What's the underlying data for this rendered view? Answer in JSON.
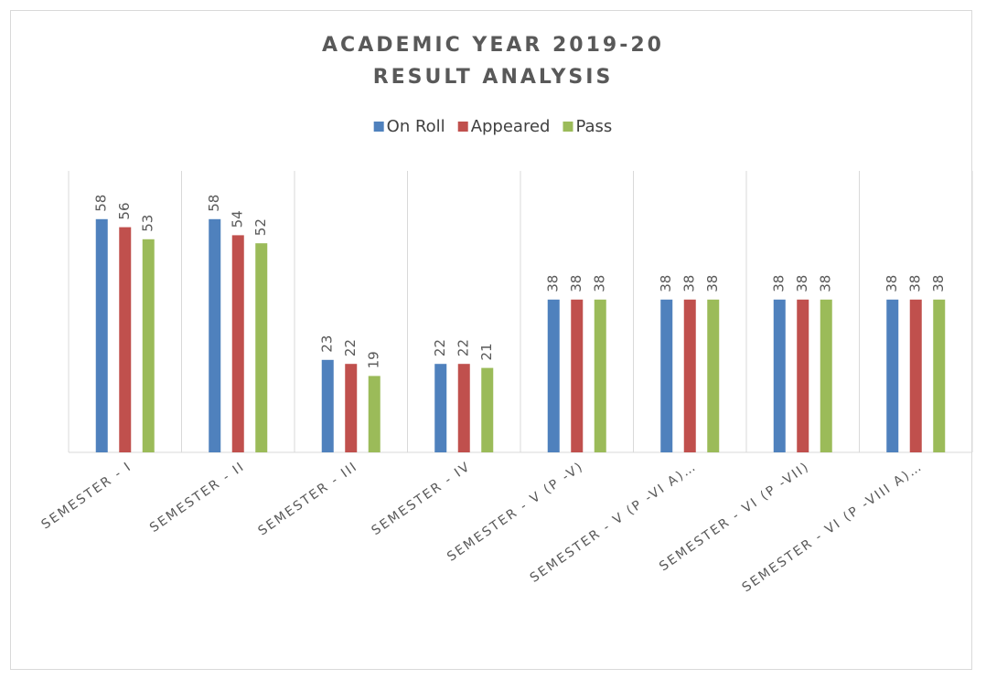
{
  "chart_data": {
    "type": "bar",
    "title": [
      "ACADEMIC YEAR 2019-20",
      "RESULT ANALYSIS"
    ],
    "categories": [
      "SEMESTER - I",
      "SEMESTER - II",
      "SEMESTER - III",
      "SEMESTER - IV",
      "SEMESTER - V (P -V)",
      "SEMESTER - V (P -VI A)…",
      "SEMESTER - VI (P -VII)",
      "SEMESTER - VI (P -VIII A)…"
    ],
    "series": [
      {
        "name": "On Roll",
        "color": "#4f81bd",
        "values": [
          58,
          58,
          23,
          22,
          38,
          38,
          38,
          38
        ]
      },
      {
        "name": "Appeared",
        "color": "#c0504d",
        "values": [
          56,
          54,
          22,
          22,
          38,
          38,
          38,
          38
        ]
      },
      {
        "name": "Pass",
        "color": "#9bbb59",
        "values": [
          53,
          52,
          19,
          21,
          38,
          38,
          38,
          38
        ]
      }
    ],
    "ylim": [
      0,
      70
    ],
    "legend": "top"
  }
}
